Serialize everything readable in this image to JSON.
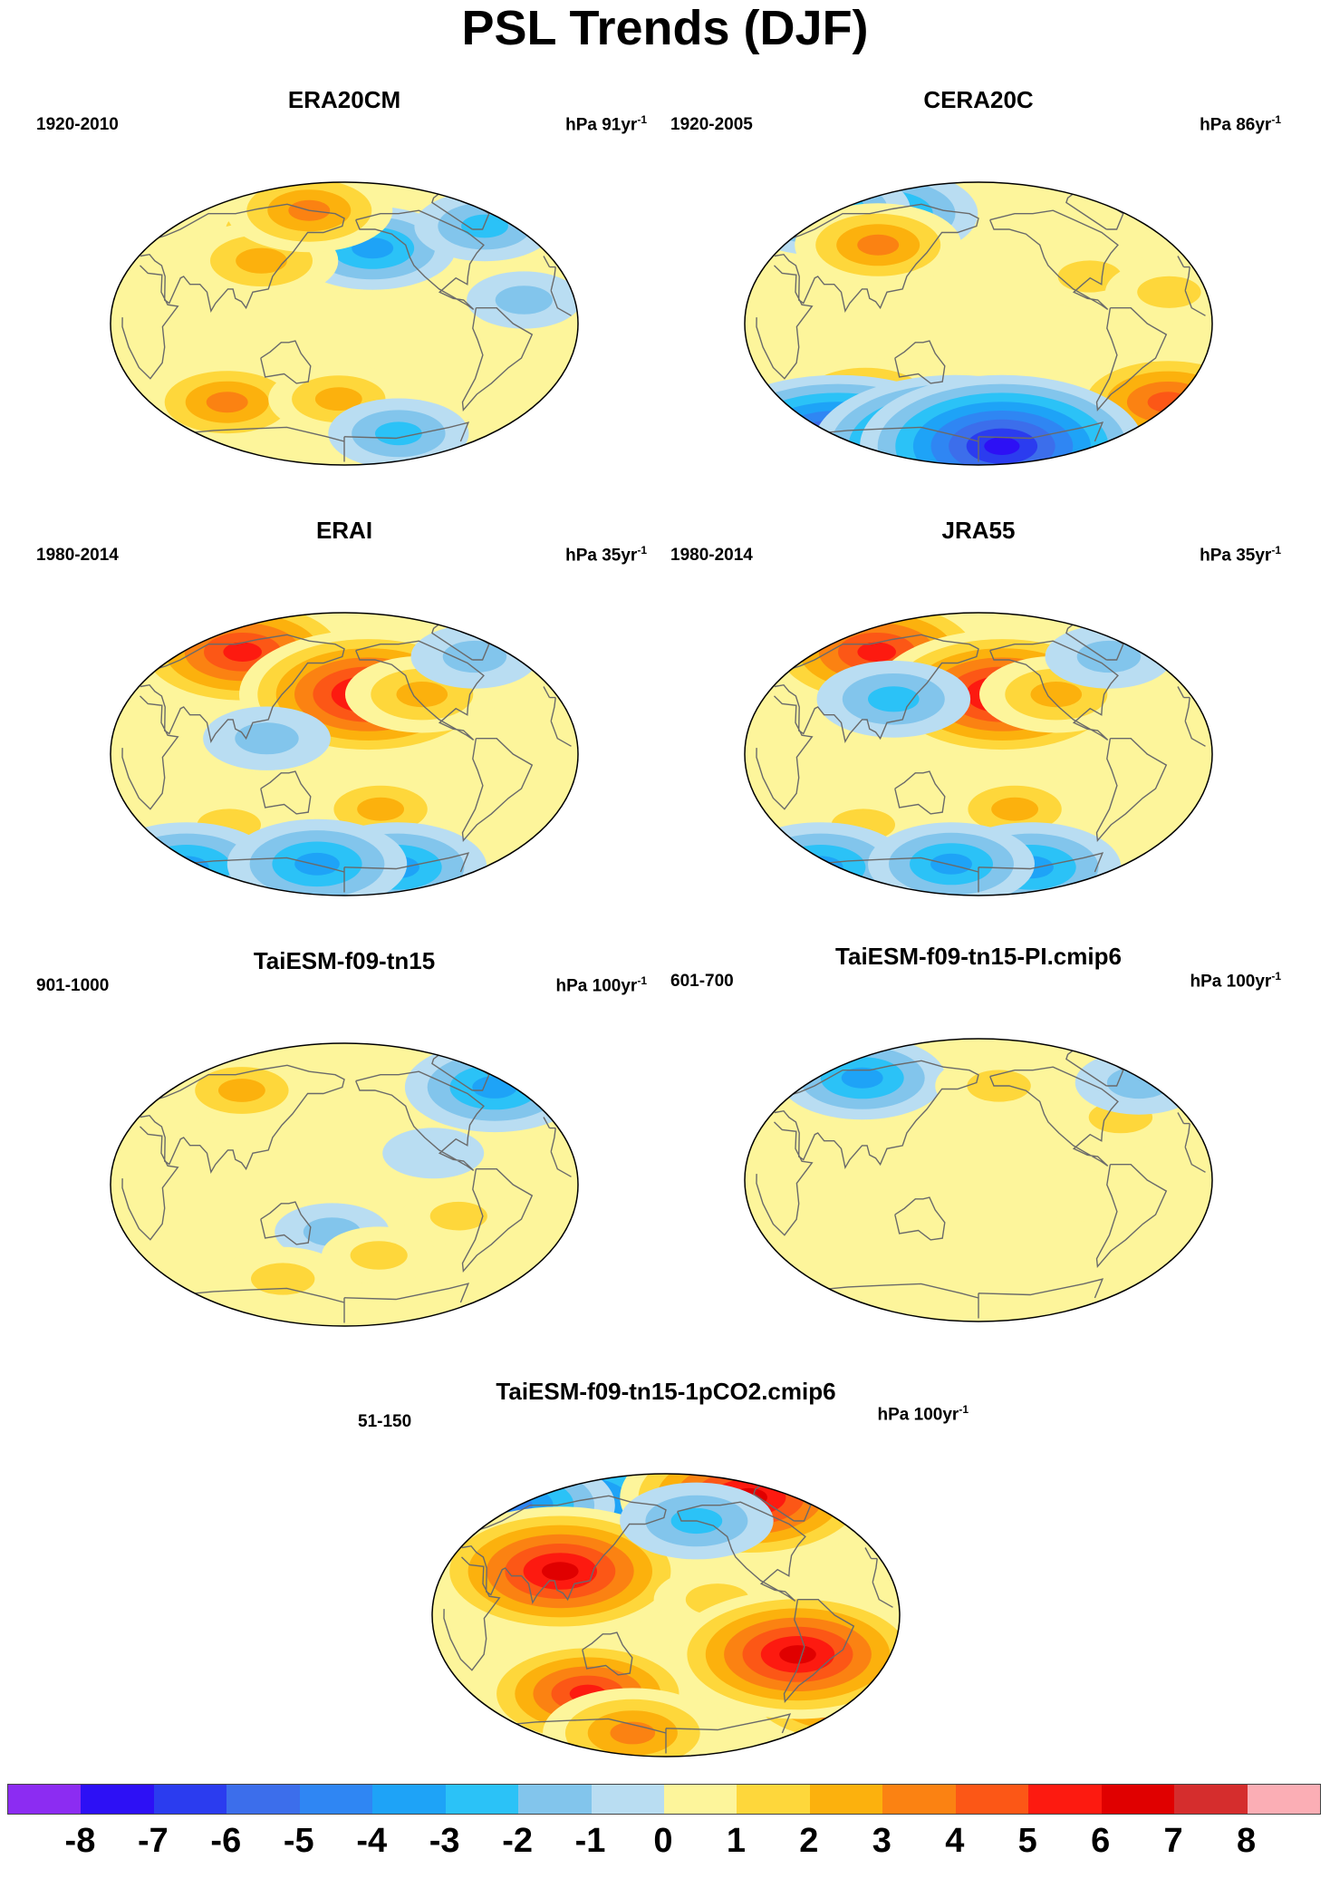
{
  "figure": {
    "title": "PSL Trends (DJF)"
  },
  "panels": [
    {
      "name": "ERA20CM",
      "period": "1920-2010",
      "units": "hPa 91yr",
      "units_exp": "-1",
      "features": [
        {
          "lon": 110,
          "lat": 60,
          "v": 2.5
        },
        {
          "lon": -155,
          "lat": 48,
          "v": -3.5
        },
        {
          "lon": 110,
          "lat": 40,
          "v": 3
        },
        {
          "lon": 75,
          "lat": -50,
          "v": 3.5
        },
        {
          "lon": 175,
          "lat": -48,
          "v": 2.5
        },
        {
          "lon": -40,
          "lat": 62,
          "v": -2.5
        },
        {
          "lon": -120,
          "lat": -70,
          "v": -2.5
        },
        {
          "lon": 20,
          "lat": 10,
          "v": 0.5
        },
        {
          "lon": -40,
          "lat": 15,
          "v": -1.5
        },
        {
          "lon": 140,
          "lat": 72,
          "v": 3.5
        }
      ]
    },
    {
      "name": "CERA20C",
      "period": "1920-2005",
      "units": "hPa 86yr",
      "units_exp": "-1",
      "features": [
        {
          "lon": 80,
          "lat": 70,
          "v": -4
        },
        {
          "lon": 0,
          "lat": 72,
          "v": -4
        },
        {
          "lon": 90,
          "lat": 50,
          "v": 3.5
        },
        {
          "lon": -90,
          "lat": 30,
          "v": 2
        },
        {
          "lon": -30,
          "lat": 20,
          "v": 2
        },
        {
          "lon": 80,
          "lat": -48,
          "v": 3.5
        },
        {
          "lon": -10,
          "lat": -50,
          "v": 5
        },
        {
          "lon": -150,
          "lat": -50,
          "v": 2
        },
        {
          "lon": 0,
          "lat": -78,
          "v": -8
        },
        {
          "lon": 150,
          "lat": -78,
          "v": -8
        },
        {
          "lon": -150,
          "lat": -78,
          "v": -8
        }
      ]
    },
    {
      "name": "ERAI",
      "period": "1980-2014",
      "units": "hPa 35yr",
      "units_exp": "-1",
      "features": [
        {
          "lon": 75,
          "lat": 65,
          "v": 6
        },
        {
          "lon": -160,
          "lat": 38,
          "v": 7
        },
        {
          "lon": -115,
          "lat": 38,
          "v": 3
        },
        {
          "lon": 120,
          "lat": 10,
          "v": -2
        },
        {
          "lon": -150,
          "lat": -35,
          "v": 2.5
        },
        {
          "lon": 80,
          "lat": -45,
          "v": 2
        },
        {
          "lon": 0,
          "lat": -72,
          "v": -4
        },
        {
          "lon": -120,
          "lat": -72,
          "v": -4
        },
        {
          "lon": 150,
          "lat": -70,
          "v": -4
        },
        {
          "lon": -50,
          "lat": 62,
          "v": -2
        }
      ]
    },
    {
      "name": "JRA55",
      "period": "1980-2014",
      "units": "hPa 35yr",
      "units_exp": "-1",
      "features": [
        {
          "lon": 75,
          "lat": 65,
          "v": 6
        },
        {
          "lon": -160,
          "lat": 38,
          "v": 7
        },
        {
          "lon": -115,
          "lat": 38,
          "v": 3
        },
        {
          "lon": 110,
          "lat": 35,
          "v": -3
        },
        {
          "lon": -150,
          "lat": -35,
          "v": 2.5
        },
        {
          "lon": 80,
          "lat": -45,
          "v": 2
        },
        {
          "lon": 0,
          "lat": -72,
          "v": -4
        },
        {
          "lon": -120,
          "lat": -72,
          "v": -4
        },
        {
          "lon": 150,
          "lat": -70,
          "v": -3.5
        },
        {
          "lon": -50,
          "lat": 62,
          "v": -2
        }
      ]
    },
    {
      "name": "TaiESM-f09-tn15",
      "period": "901-1000",
      "units": "hPa 100yr",
      "units_exp": "-1",
      "features": [
        {
          "lon": 80,
          "lat": 60,
          "v": 2.5
        },
        {
          "lon": -30,
          "lat": 62,
          "v": -4
        },
        {
          "lon": -110,
          "lat": 20,
          "v": -1
        },
        {
          "lon": 170,
          "lat": -30,
          "v": -1.5
        },
        {
          "lon": -150,
          "lat": -45,
          "v": 1.5
        },
        {
          "lon": 120,
          "lat": -60,
          "v": 2
        },
        {
          "lon": -90,
          "lat": -20,
          "v": 1.5
        }
      ]
    },
    {
      "name": "TaiESM-f09-tn15-PI.cmip6",
      "period": "601-700",
      "units": "hPa 100yr",
      "units_exp": "-1",
      "features": [
        {
          "lon": 60,
          "lat": 65,
          "v": -3.5
        },
        {
          "lon": -160,
          "lat": 60,
          "v": 2
        },
        {
          "lon": -60,
          "lat": 40,
          "v": 2
        },
        {
          "lon": -100,
          "lat": -10,
          "v": 1
        },
        {
          "lon": 100,
          "lat": -20,
          "v": 0.5
        },
        {
          "lon": -20,
          "lat": 62,
          "v": -2
        }
      ]
    },
    {
      "name": "TaiESM-f09-tn15-1pCO2.cmip6",
      "period": "51-150",
      "units": "hPa 100yr",
      "units_exp": "-1",
      "features": [
        {
          "lon": 80,
          "lat": 70,
          "v": -6
        },
        {
          "lon": 10,
          "lat": 70,
          "v": -5
        },
        {
          "lon": -80,
          "lat": 75,
          "v": 7
        },
        {
          "lon": 95,
          "lat": 28,
          "v": 7
        },
        {
          "lon": -140,
          "lat": 10,
          "v": 2
        },
        {
          "lon": 110,
          "lat": -50,
          "v": 5.5
        },
        {
          "lon": -20,
          "lat": -50,
          "v": 5.5
        },
        {
          "lon": -60,
          "lat": -15,
          "v": -3
        },
        {
          "lon": -75,
          "lat": -25,
          "v": 7
        },
        {
          "lon": -150,
          "lat": 60,
          "v": -3
        },
        {
          "lon": 140,
          "lat": -75,
          "v": 4
        }
      ]
    }
  ],
  "colorbar": {
    "labels": [
      "-8",
      "-7",
      "-6",
      "-5",
      "-4",
      "-3",
      "-2",
      "-1",
      "0",
      "1",
      "2",
      "3",
      "4",
      "5",
      "6",
      "7",
      "8"
    ],
    "colors": [
      "#8c2cf2",
      "#2d10f5",
      "#2b3cef",
      "#3c6eeb",
      "#2f86f3",
      "#1ea3f7",
      "#2bc2f7",
      "#82c5ec",
      "#b9ddf2",
      "#fdf59b",
      "#fed73b",
      "#fcb10d",
      "#fb8212",
      "#fc5716",
      "#fd1a10",
      "#e00000",
      "#d52d2d",
      "#fbaeb5"
    ]
  }
}
